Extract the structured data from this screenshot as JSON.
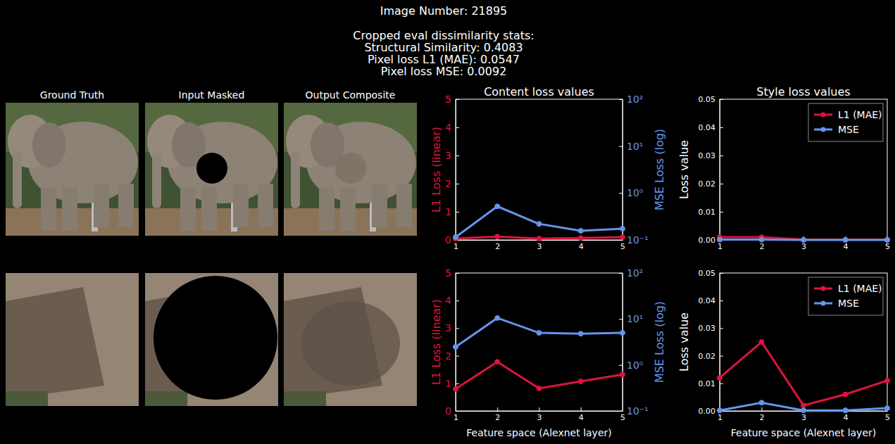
{
  "header": {
    "title": "Image Number: 21895",
    "subtitle_lines": [
      "Cropped eval dissimilarity stats:",
      "Structural Similarity: 0.4083",
      "Pixel loss L1 (MAE): 0.0547",
      "Pixel loss MSE: 0.0092"
    ]
  },
  "panels": {
    "titles": [
      "Ground Truth",
      "Input Masked",
      "Output Composite"
    ]
  },
  "chart_data": [
    {
      "type": "line",
      "title": "Content loss values",
      "x": [
        1,
        2,
        3,
        4,
        5
      ],
      "xlim": [
        1,
        5
      ],
      "xticks": [
        1,
        2,
        3,
        4,
        5
      ],
      "y_label": "L1 Loss (linear)",
      "y2_label": "MSE Loss (log)",
      "ylim": [
        0,
        5
      ],
      "yticks": [
        0,
        1,
        2,
        3,
        4,
        5
      ],
      "y2lim": [
        0.1,
        100
      ],
      "y2ticks": [
        {
          "value": 0.1,
          "label": "10⁻¹"
        },
        {
          "value": 1,
          "label": "10⁰"
        },
        {
          "value": 10,
          "label": "10¹"
        },
        {
          "value": 100,
          "label": "10²"
        }
      ],
      "log": "y2",
      "series": [
        {
          "color": "#dc143c",
          "marker": "circle",
          "values": [
            0.05,
            0.12,
            0.05,
            0.07,
            0.1
          ]
        },
        {
          "color": "#6495ed",
          "marker": "circle",
          "axis": "y2",
          "values": [
            0.115,
            0.52,
            0.22,
            0.157,
            0.174
          ]
        }
      ]
    },
    {
      "type": "line",
      "title": "Style loss values",
      "x": [
        1,
        2,
        3,
        4,
        5
      ],
      "xlim": [
        1,
        5
      ],
      "xticks": [
        1,
        2,
        3,
        4,
        5
      ],
      "y_label": "Loss value",
      "ylim": [
        0,
        0.05
      ],
      "yticks": [
        {
          "value": 0,
          "label": "0.00"
        },
        {
          "value": 0.01,
          "label": "0.01"
        },
        {
          "value": 0.02,
          "label": "0.02"
        },
        {
          "value": 0.03,
          "label": "0.03"
        },
        {
          "value": 0.04,
          "label": "0.04"
        },
        {
          "value": 0.05,
          "label": "0.05"
        }
      ],
      "legend": "upper right",
      "series": [
        {
          "name": "L1 (MAE)",
          "color": "#dc143c",
          "marker": "circle",
          "values": [
            0.001,
            0.001,
            0.0001,
            0.0001,
            0.0001
          ]
        },
        {
          "name": "MSE",
          "color": "#6495ed",
          "marker": "circle",
          "values": [
            0.0001,
            0.0001,
            0,
            0,
            0
          ]
        }
      ]
    },
    {
      "type": "line",
      "x_label": "Feature space (Alexnet layer)",
      "x": [
        1,
        2,
        3,
        4,
        5
      ],
      "xlim": [
        1,
        5
      ],
      "xticks": [
        1,
        2,
        3,
        4,
        5
      ],
      "y_label": "L1 Loss (linear)",
      "y2_label": "MSE Loss (log)",
      "ylim": [
        0,
        5
      ],
      "yticks": [
        0,
        1,
        2,
        3,
        4,
        5
      ],
      "y2lim": [
        0.1,
        100
      ],
      "y2ticks": [
        {
          "value": 0.1,
          "label": "10⁻¹"
        },
        {
          "value": 1,
          "label": "10⁰"
        },
        {
          "value": 10,
          "label": "10¹"
        },
        {
          "value": 100,
          "label": "10²"
        }
      ],
      "log": "y2",
      "series": [
        {
          "color": "#dc143c",
          "marker": "circle",
          "values": [
            0.8,
            1.78,
            0.82,
            1.07,
            1.32
          ]
        },
        {
          "color": "#6495ed",
          "marker": "circle",
          "axis": "y2",
          "values": [
            2.47,
            10.5,
            5.0,
            4.8,
            5.0
          ]
        }
      ]
    },
    {
      "type": "line",
      "x_label": "Feature space (Alexnet layer)",
      "x": [
        1,
        2,
        3,
        4,
        5
      ],
      "xlim": [
        1,
        5
      ],
      "xticks": [
        1,
        2,
        3,
        4,
        5
      ],
      "y_label": "Loss value",
      "ylim": [
        0,
        0.05
      ],
      "yticks": [
        {
          "value": 0,
          "label": "0.00"
        },
        {
          "value": 0.01,
          "label": "0.01"
        },
        {
          "value": 0.02,
          "label": "0.02"
        },
        {
          "value": 0.03,
          "label": "0.03"
        },
        {
          "value": 0.04,
          "label": "0.04"
        },
        {
          "value": 0.05,
          "label": "0.05"
        }
      ],
      "legend": "upper right",
      "series": [
        {
          "name": "L1 (MAE)",
          "color": "#dc143c",
          "marker": "circle",
          "values": [
            0.012,
            0.025,
            0.002,
            0.006,
            0.011
          ]
        },
        {
          "name": "MSE",
          "color": "#6495ed",
          "marker": "circle",
          "values": [
            0.0002,
            0.003,
            0.0002,
            0.0002,
            0.001
          ]
        }
      ]
    }
  ]
}
